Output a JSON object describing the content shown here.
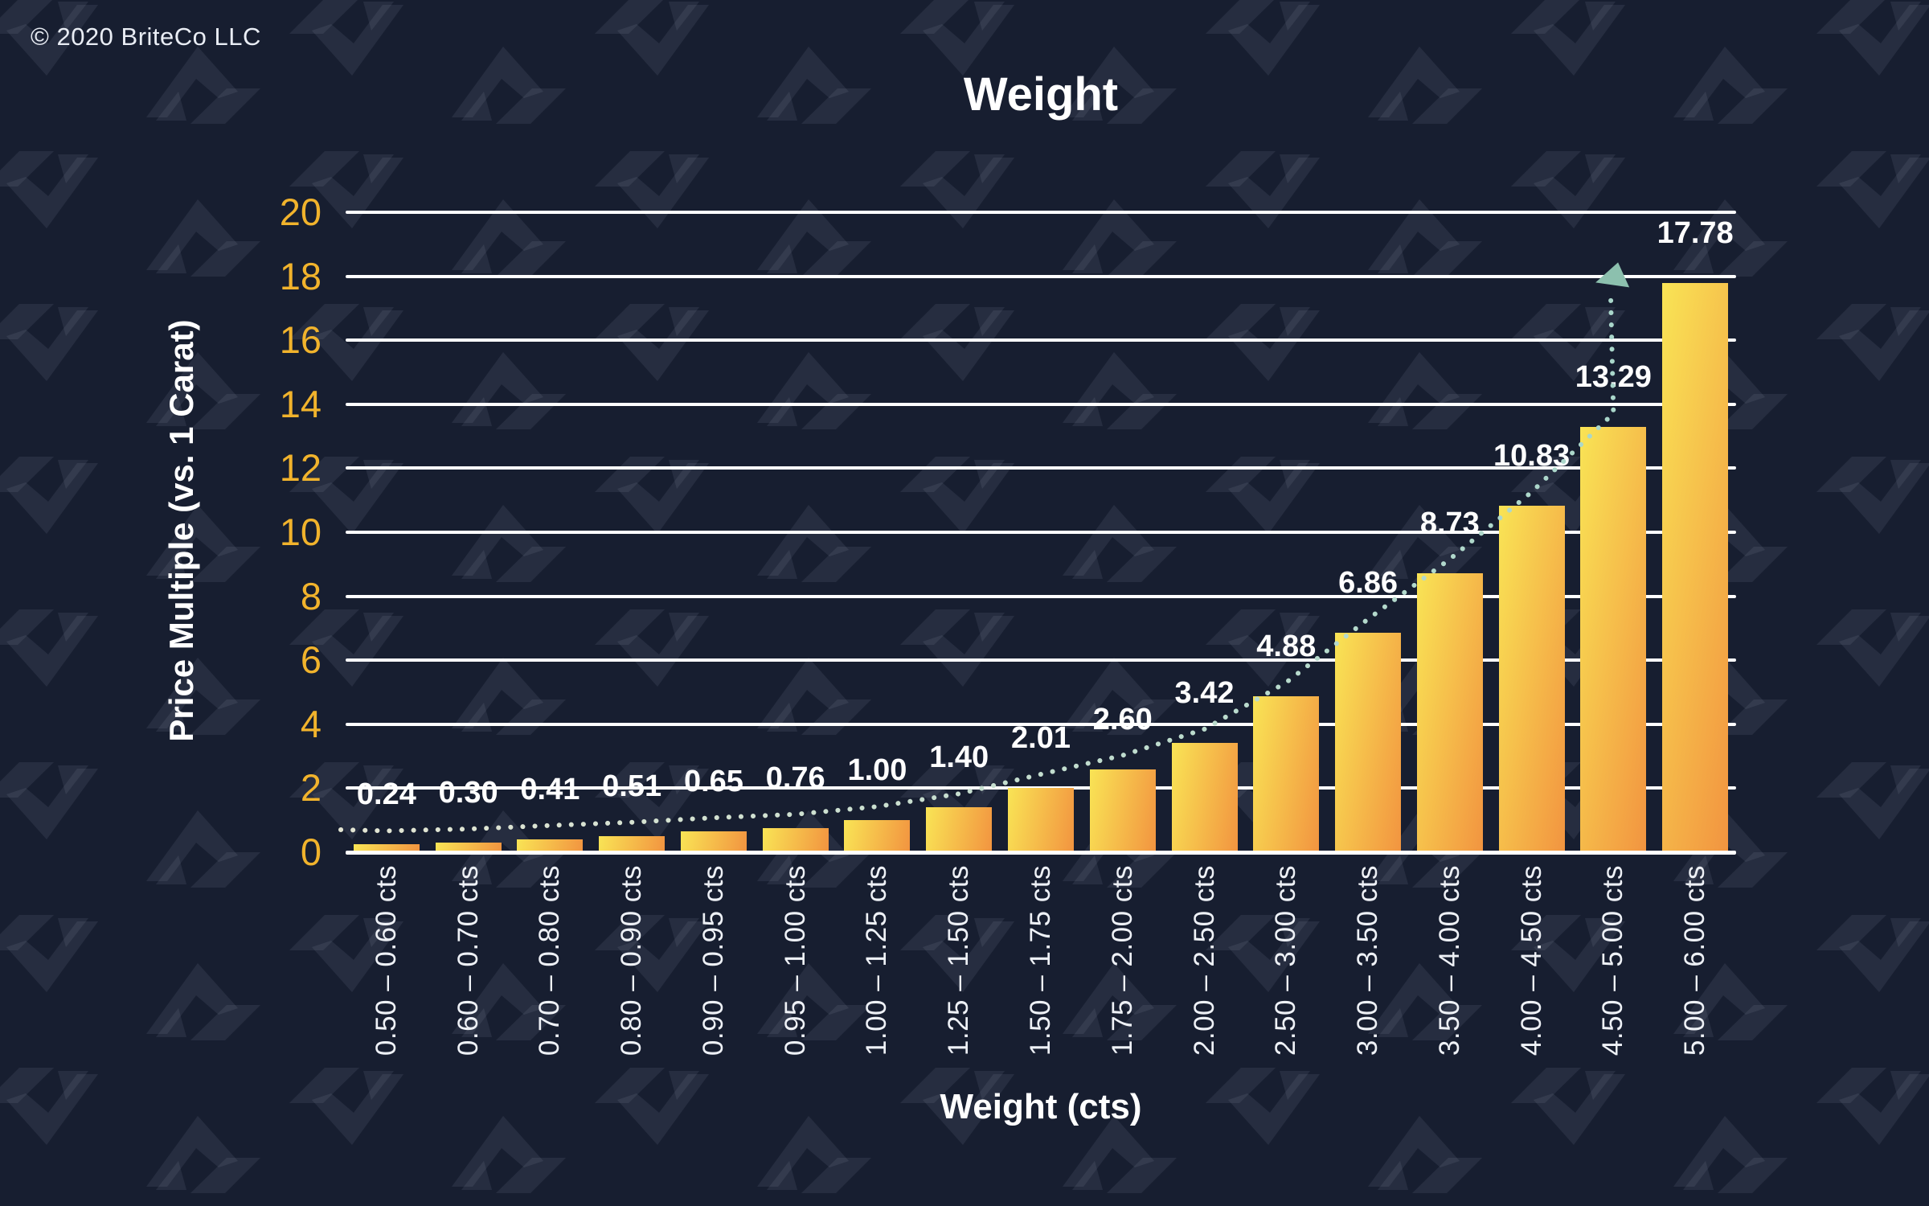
{
  "page": {
    "copyright": "© 2020 BriteCo LLC"
  },
  "chart_data": {
    "type": "bar",
    "title": "Weight",
    "xlabel": "Weight (cts)",
    "ylabel": "Price Multiple (vs. 1 Carat)",
    "categories": [
      "0.50 – 0.60 cts",
      "0.60 – 0.70 cts",
      "0.70 – 0.80 cts",
      "0.80 – 0.90 cts",
      "0.90 – 0.95 cts",
      "0.95 – 1.00 cts",
      "1.00 – 1.25 cts",
      "1.25 – 1.50 cts",
      "1.50 – 1.75 cts",
      "1.75 – 2.00 cts",
      "2.00 – 2.50 cts",
      "2.50 – 3.00 cts",
      "3.00 – 3.50 cts",
      "3.50 – 4.00 cts",
      "4.00 – 4.50 cts",
      "4.50 – 5.00 cts",
      "5.00 – 6.00 cts"
    ],
    "values": [
      0.24,
      0.3,
      0.41,
      0.51,
      0.65,
      0.76,
      1.0,
      1.4,
      2.01,
      2.6,
      3.42,
      4.88,
      6.86,
      8.73,
      10.83,
      13.29,
      17.78
    ],
    "ylim": [
      0,
      20
    ],
    "ytick_step": 2,
    "grid": true,
    "legend_position": "none",
    "trend": {
      "style": "dotted",
      "arrow": true
    },
    "colors": {
      "background": "#171e30",
      "gridline": "#ffffff",
      "tick_labels_gold": "#f1b32c",
      "bar_gradient_start": "#f9e455",
      "bar_gradient_end": "#f29440",
      "bar_value_text": "#ffffff",
      "trend_dots_start": "#e3e5d3",
      "trend_dots_end": "#a7d6ca",
      "trend_arrow": "#8cc0ae",
      "watermark": "#c9d7ea"
    }
  }
}
